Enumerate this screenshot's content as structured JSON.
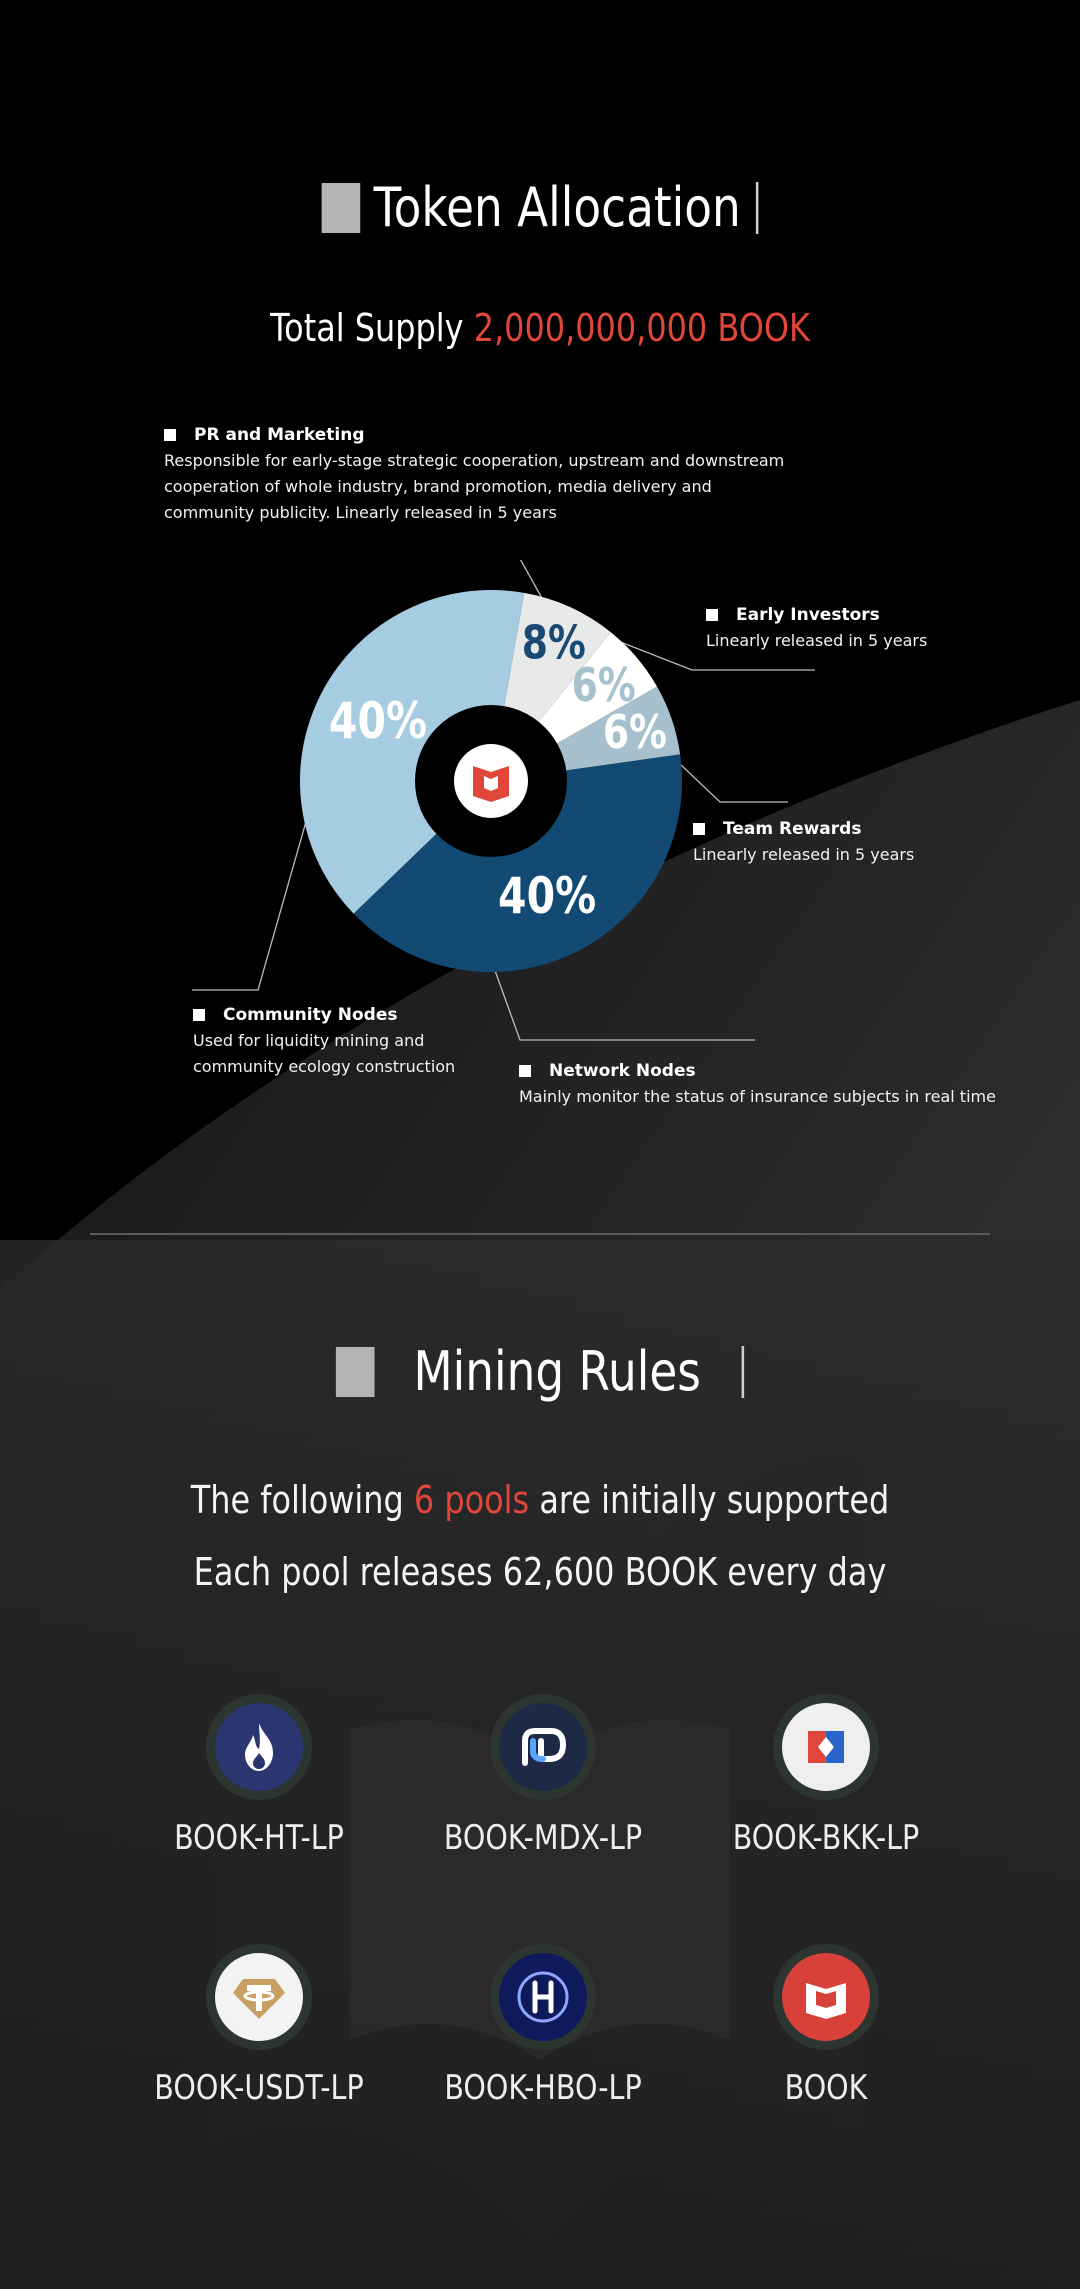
{
  "token_allocation": {
    "title": "Token Allocation",
    "supply_label": "Total Supply",
    "supply_value": "2,000,000,000 BOOK"
  },
  "chart_data": {
    "type": "pie",
    "style": "donut",
    "slices": [
      {
        "name": "PR and Marketing",
        "value": 8,
        "label": "8%",
        "color": "#e8e9e9",
        "label_color": "#1a4a74",
        "description": "Responsible for early-stage strategic cooperation, upstream and downstream cooperation of whole industry, brand promotion, media delivery and community publicity. Linearly released in 5 years"
      },
      {
        "name": "Early Investors",
        "value": 6,
        "label": "6%",
        "color": "#ffffff",
        "label_color": "#a8c1cf",
        "description": "Linearly released in 5 years"
      },
      {
        "name": "Team Rewards",
        "value": 6,
        "label": "6%",
        "color": "#a7c0cd",
        "label_color": "#ffffff",
        "description": "Linearly released in 5 years"
      },
      {
        "name": "Network Nodes",
        "value": 40,
        "label": "40%",
        "color": "#124a73",
        "label_color": "#ffffff",
        "description": "Mainly monitor the status of insurance subjects in real time"
      },
      {
        "name": "Community Nodes",
        "value": 40,
        "label": "40%",
        "color": "#a6cce2",
        "label_color": "#ffffff",
        "description": "Used for liquidity mining and community ecology construction"
      }
    ],
    "center_icon": "book-logo-icon"
  },
  "mining": {
    "title": "Mining Rules",
    "line1_pre": "The following",
    "line1_highlight": "6 pools",
    "line1_post": "are initially supported",
    "line2": "Each pool releases 62,600 BOOK every day",
    "pools": [
      {
        "label": "BOOK-HT-LP",
        "icon": "ht-flame-icon"
      },
      {
        "label": "BOOK-MDX-LP",
        "icon": "mdx-icon"
      },
      {
        "label": "BOOK-BKK-LP",
        "icon": "bkk-icon"
      },
      {
        "label": "BOOK-USDT-LP",
        "icon": "usdt-tether-icon"
      },
      {
        "label": "BOOK-HBO-LP",
        "icon": "hbo-icon"
      },
      {
        "label": "BOOK",
        "icon": "book-logo-icon"
      }
    ]
  },
  "colors": {
    "accent": "#e0463a",
    "background": "#000000"
  }
}
